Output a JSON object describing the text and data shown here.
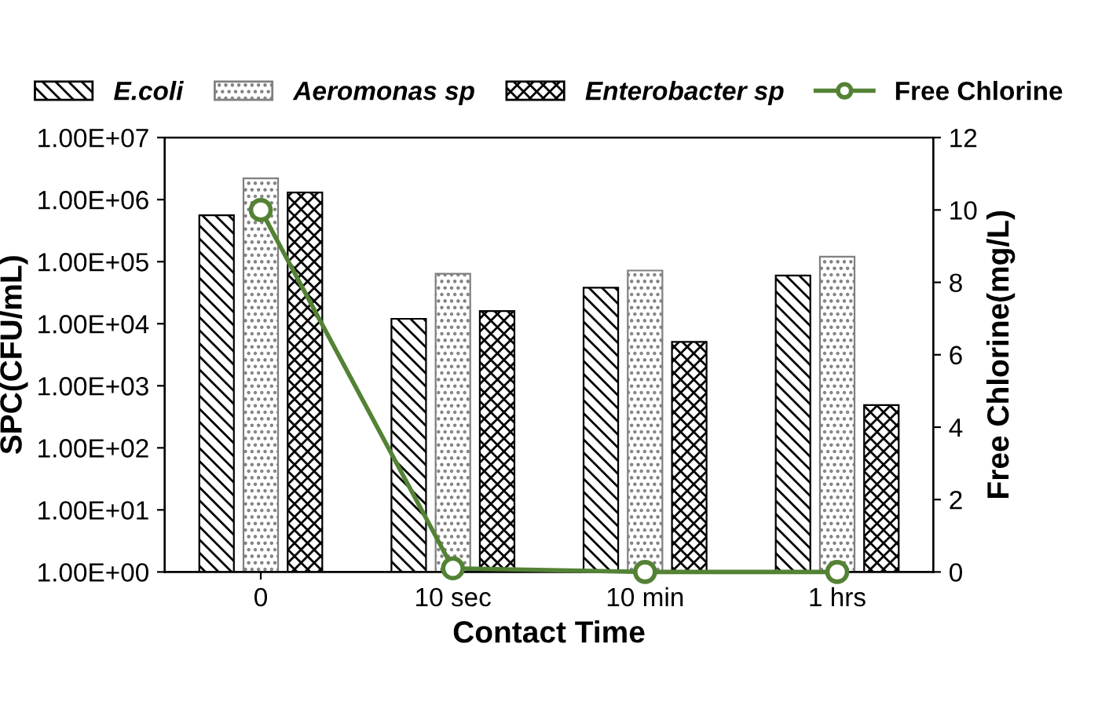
{
  "chart_data": {
    "type": "bar",
    "xlabel": "Contact Time",
    "ylabel": "SPC(CFU/mL)",
    "y2label": "Free Chlorine(mg/L)",
    "categories": [
      "0",
      "10 sec",
      "10 min",
      "1 hrs"
    ],
    "series": [
      {
        "name": "E.coli",
        "color": "#000000",
        "values": [
          560000,
          12000,
          38000,
          60000
        ]
      },
      {
        "name": "Aeromonas sp",
        "color": "#808080",
        "values": [
          2200000,
          64000,
          72000,
          120000
        ]
      },
      {
        "name": "Enterobacter sp",
        "color": "#000000",
        "values": [
          1300000,
          16000,
          5100,
          490
        ]
      },
      {
        "name": "Free Chlorine",
        "type": "line",
        "axis": "y2",
        "color": "#548235",
        "marker": "circle",
        "values": [
          10,
          0.1,
          0,
          0
        ]
      }
    ],
    "log": "y",
    "ylim": [
      1,
      10000000
    ],
    "yticks": [
      {
        "value": 1,
        "label": "1.00E+00"
      },
      {
        "value": 10,
        "label": "1.00E+01"
      },
      {
        "value": 100,
        "label": "1.00E+02"
      },
      {
        "value": 1000,
        "label": "1.00E+03"
      },
      {
        "value": 10000,
        "label": "1.00E+04"
      },
      {
        "value": 100000,
        "label": "1.00E+05"
      },
      {
        "value": 1000000,
        "label": "1.00E+06"
      },
      {
        "value": 10000000,
        "label": "1.00E+07"
      }
    ],
    "y2lim": [
      0,
      12
    ],
    "y2ticks": [
      0,
      2,
      4,
      6,
      8,
      10,
      12
    ],
    "grid": false,
    "legend": "top"
  }
}
